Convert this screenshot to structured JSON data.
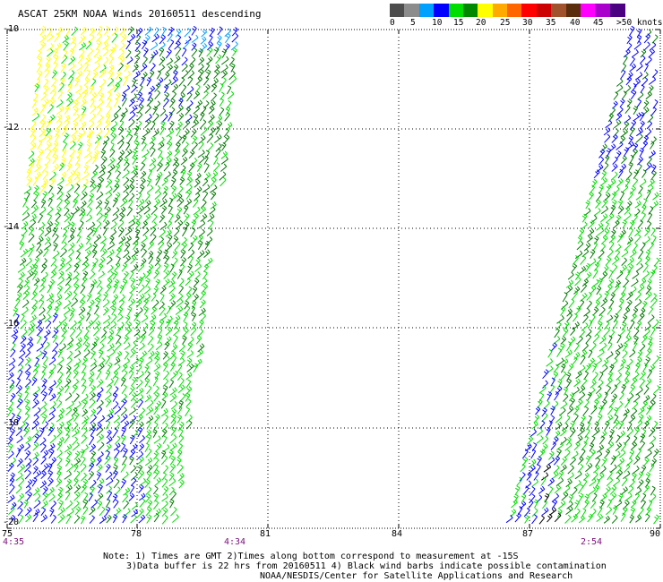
{
  "title": "ASCAT 25KM NOAA Winds 20160511 descending",
  "legend": {
    "ticks": [
      "0",
      "5",
      "10",
      "15",
      "20",
      "25",
      "30",
      "35",
      "40",
      "45",
      ">50 knots"
    ],
    "colors": [
      "#4d4d4d",
      "#8c8c8c",
      "#00a0ff",
      "#0000ff",
      "#00dd00",
      "#008800",
      "#ffff00",
      "#ffaa00",
      "#ff6600",
      "#ff0000",
      "#cc0000",
      "#a0522d",
      "#5a2d0c",
      "#ff00ff",
      "#aa00cc",
      "#4b0082"
    ]
  },
  "map": {
    "lat_labels": [
      "-10",
      "-12",
      "-14",
      "-16",
      "-18",
      "-20"
    ],
    "lon_labels": [
      "75",
      "78",
      "81",
      "84",
      "87",
      "90"
    ],
    "pass_times": [
      "4:35",
      "4:34",
      "2:54"
    ],
    "barb_colors": {
      "light_green": "#00dd00",
      "dark_green": "#007a00",
      "blue": "#0000ff",
      "yellow": "#ffff00",
      "light_blue": "#00a0ff",
      "black": "#000000"
    }
  },
  "notes": {
    "line1": "Note: 1) Times are GMT 2)Times along bottom correspond to measurement at -15S",
    "line2": "3)Data buffer is 22 hrs from 20160511 4) Black wind barbs indicate possible contamination",
    "line3": "NOAA/NESDIS/Center for Satellite Applications and Research"
  }
}
